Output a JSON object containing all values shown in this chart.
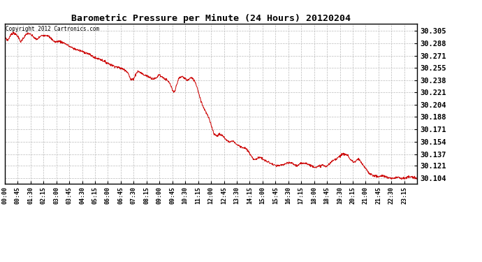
{
  "title": "Barometric Pressure per Minute (24 Hours) 20120204",
  "copyright": "Copyright 2012 Cartronics.com",
  "line_color": "#cc0000",
  "background_color": "#ffffff",
  "grid_color": "#bbbbbb",
  "yticks": [
    30.104,
    30.121,
    30.137,
    30.154,
    30.171,
    30.188,
    30.204,
    30.221,
    30.238,
    30.255,
    30.271,
    30.288,
    30.305
  ],
  "ylim": [
    30.097,
    30.315
  ],
  "xtick_labels": [
    "00:00",
    "00:45",
    "01:30",
    "02:15",
    "03:00",
    "03:45",
    "04:30",
    "05:15",
    "06:00",
    "06:45",
    "07:30",
    "08:15",
    "09:00",
    "09:45",
    "10:30",
    "11:15",
    "12:00",
    "12:45",
    "13:30",
    "14:15",
    "15:00",
    "15:45",
    "16:30",
    "17:15",
    "18:00",
    "18:45",
    "19:30",
    "20:15",
    "21:00",
    "21:45",
    "22:30",
    "23:15"
  ],
  "ctrl_points": [
    [
      0,
      30.297
    ],
    [
      10,
      30.292
    ],
    [
      20,
      30.299
    ],
    [
      30,
      30.303
    ],
    [
      45,
      30.298
    ],
    [
      55,
      30.29
    ],
    [
      70,
      30.298
    ],
    [
      80,
      30.302
    ],
    [
      90,
      30.3
    ],
    [
      100,
      30.297
    ],
    [
      110,
      30.293
    ],
    [
      130,
      30.299
    ],
    [
      150,
      30.299
    ],
    [
      160,
      30.295
    ],
    [
      175,
      30.29
    ],
    [
      190,
      30.291
    ],
    [
      210,
      30.288
    ],
    [
      225,
      30.284
    ],
    [
      240,
      30.281
    ],
    [
      255,
      30.279
    ],
    [
      270,
      30.277
    ],
    [
      285,
      30.275
    ],
    [
      300,
      30.272
    ],
    [
      315,
      30.268
    ],
    [
      330,
      30.267
    ],
    [
      345,
      30.264
    ],
    [
      360,
      30.261
    ],
    [
      375,
      30.258
    ],
    [
      390,
      30.256
    ],
    [
      405,
      30.254
    ],
    [
      420,
      30.252
    ],
    [
      430,
      30.248
    ],
    [
      435,
      30.243
    ],
    [
      440,
      30.238
    ],
    [
      450,
      30.24
    ],
    [
      455,
      30.244
    ],
    [
      460,
      30.248
    ],
    [
      465,
      30.25
    ],
    [
      475,
      30.248
    ],
    [
      485,
      30.245
    ],
    [
      495,
      30.244
    ],
    [
      505,
      30.242
    ],
    [
      510,
      30.241
    ],
    [
      515,
      30.24
    ],
    [
      525,
      30.24
    ],
    [
      530,
      30.241
    ],
    [
      535,
      30.244
    ],
    [
      540,
      30.246
    ],
    [
      545,
      30.243
    ],
    [
      555,
      30.241
    ],
    [
      560,
      30.239
    ],
    [
      565,
      30.238
    ],
    [
      570,
      30.236
    ],
    [
      575,
      30.234
    ],
    [
      580,
      30.23
    ],
    [
      585,
      30.224
    ],
    [
      590,
      30.221
    ],
    [
      595,
      30.224
    ],
    [
      600,
      30.232
    ],
    [
      605,
      30.238
    ],
    [
      610,
      30.241
    ],
    [
      615,
      30.242
    ],
    [
      620,
      30.243
    ],
    [
      625,
      30.241
    ],
    [
      630,
      30.24
    ],
    [
      635,
      30.238
    ],
    [
      640,
      30.238
    ],
    [
      645,
      30.24
    ],
    [
      650,
      30.241
    ],
    [
      655,
      30.24
    ],
    [
      660,
      30.238
    ],
    [
      665,
      30.235
    ],
    [
      670,
      30.23
    ],
    [
      675,
      30.223
    ],
    [
      680,
      30.216
    ],
    [
      690,
      30.204
    ],
    [
      700,
      30.196
    ],
    [
      710,
      30.188
    ],
    [
      720,
      30.178
    ],
    [
      725,
      30.171
    ],
    [
      730,
      30.165
    ],
    [
      735,
      30.163
    ],
    [
      740,
      30.162
    ],
    [
      745,
      30.163
    ],
    [
      750,
      30.164
    ],
    [
      755,
      30.163
    ],
    [
      760,
      30.162
    ],
    [
      765,
      30.16
    ],
    [
      770,
      30.158
    ],
    [
      780,
      30.154
    ],
    [
      790,
      30.154
    ],
    [
      795,
      30.155
    ],
    [
      800,
      30.154
    ],
    [
      805,
      30.152
    ],
    [
      810,
      30.15
    ],
    [
      820,
      30.148
    ],
    [
      830,
      30.146
    ],
    [
      840,
      30.145
    ],
    [
      845,
      30.143
    ],
    [
      855,
      30.138
    ],
    [
      860,
      30.134
    ],
    [
      870,
      30.13
    ],
    [
      880,
      30.13
    ],
    [
      885,
      30.132
    ],
    [
      890,
      30.133
    ],
    [
      895,
      30.132
    ],
    [
      900,
      30.13
    ],
    [
      910,
      30.128
    ],
    [
      920,
      30.126
    ],
    [
      930,
      30.124
    ],
    [
      940,
      30.122
    ],
    [
      945,
      30.121
    ],
    [
      950,
      30.121
    ],
    [
      960,
      30.121
    ],
    [
      965,
      30.122
    ],
    [
      975,
      30.123
    ],
    [
      985,
      30.124
    ],
    [
      990,
      30.125
    ],
    [
      1000,
      30.125
    ],
    [
      1005,
      30.124
    ],
    [
      1010,
      30.123
    ],
    [
      1015,
      30.122
    ],
    [
      1020,
      30.121
    ],
    [
      1025,
      30.122
    ],
    [
      1035,
      30.124
    ],
    [
      1040,
      30.125
    ],
    [
      1050,
      30.125
    ],
    [
      1055,
      30.124
    ],
    [
      1060,
      30.123
    ],
    [
      1070,
      30.121
    ],
    [
      1080,
      30.12
    ],
    [
      1090,
      30.119
    ],
    [
      1095,
      30.12
    ],
    [
      1100,
      30.121
    ],
    [
      1110,
      30.122
    ],
    [
      1115,
      30.121
    ],
    [
      1120,
      30.12
    ],
    [
      1125,
      30.121
    ],
    [
      1130,
      30.122
    ],
    [
      1135,
      30.124
    ],
    [
      1140,
      30.126
    ],
    [
      1145,
      30.128
    ],
    [
      1155,
      30.13
    ],
    [
      1165,
      30.133
    ],
    [
      1175,
      30.136
    ],
    [
      1185,
      30.137
    ],
    [
      1195,
      30.136
    ],
    [
      1200,
      30.134
    ],
    [
      1205,
      30.13
    ],
    [
      1215,
      30.127
    ],
    [
      1220,
      30.126
    ],
    [
      1225,
      30.127
    ],
    [
      1230,
      30.129
    ],
    [
      1235,
      30.13
    ],
    [
      1240,
      30.128
    ],
    [
      1245,
      30.125
    ],
    [
      1250,
      30.122
    ],
    [
      1255,
      30.12
    ],
    [
      1260,
      30.117
    ],
    [
      1265,
      30.115
    ],
    [
      1270,
      30.112
    ],
    [
      1275,
      30.11
    ],
    [
      1280,
      30.109
    ],
    [
      1285,
      30.108
    ],
    [
      1295,
      30.107
    ],
    [
      1305,
      30.106
    ],
    [
      1315,
      30.107
    ],
    [
      1320,
      30.108
    ],
    [
      1325,
      30.107
    ],
    [
      1330,
      30.106
    ],
    [
      1335,
      30.105
    ],
    [
      1345,
      30.104
    ],
    [
      1355,
      30.104
    ],
    [
      1365,
      30.105
    ],
    [
      1375,
      30.106
    ],
    [
      1380,
      30.105
    ],
    [
      1385,
      30.104
    ],
    [
      1395,
      30.104
    ],
    [
      1405,
      30.105
    ],
    [
      1415,
      30.106
    ],
    [
      1425,
      30.105
    ],
    [
      1435,
      30.104
    ],
    [
      1439,
      30.104
    ]
  ]
}
